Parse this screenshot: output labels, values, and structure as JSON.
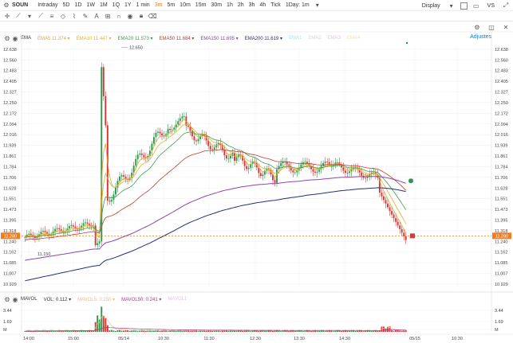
{
  "toolbar": {
    "symbol": "SOUN",
    "ranges": [
      "Intraday",
      "5D",
      "1D",
      "1W",
      "1M",
      "1Q",
      "1Y",
      "1 min"
    ],
    "intervals": [
      "3m",
      "5m",
      "10m",
      "15m",
      "30m",
      "1h",
      "2h",
      "3h",
      "4h",
      "Tick",
      "1Day: 1m"
    ],
    "active_interval": "3m",
    "display_label": "Display",
    "vs_label": "VS"
  },
  "drawing_tools": [
    "crosshair-icon",
    "line-tool-icon",
    "trend-icon",
    "fib-icon",
    "text-icon",
    "shape-icon",
    "measure-icon",
    "magnet-icon",
    "eye-icon",
    "lock-icon",
    "trash-icon"
  ],
  "indicator_legend": {
    "name": "EMA",
    "items": [
      {
        "label": "EMA5",
        "value": "11.374",
        "color": "#e8a33d"
      },
      {
        "label": "EMA10",
        "value": "11.447",
        "color": "#e0b730"
      },
      {
        "label": "EMA20",
        "value": "11.573",
        "color": "#3aa04d"
      },
      {
        "label": "EMA50",
        "value": "11.684",
        "color": "#c0392b"
      },
      {
        "label": "EMA150",
        "value": "11.695",
        "color": "#8e44ad"
      },
      {
        "label": "EMA200",
        "value": "11.619",
        "color": "#222f7a"
      },
      {
        "label": "EMA1",
        "value": "",
        "color": "#b5d9f0"
      },
      {
        "label": "EMA2",
        "value": "",
        "color": "#cfd6dc"
      },
      {
        "label": "EMA3",
        "value": "",
        "color": "#e2c6e0"
      },
      {
        "label": "EMA4",
        "value": "",
        "color": "#f2dfb0"
      }
    ],
    "adjust_label": "Adjustes"
  },
  "volume_legend": {
    "name": "MAVOL",
    "items": [
      {
        "label": "VOL:",
        "value": "0.112",
        "color": "#333"
      },
      {
        "label": "MAVOL5:",
        "value": "0.250",
        "color": "#f2b98e"
      },
      {
        "label": "MAVOL50:",
        "value": "0.241",
        "color": "#b23b7a"
      },
      {
        "label": "MAVOL1",
        "value": "",
        "color": "#e2c6e0"
      }
    ]
  },
  "price_axis": [
    "12.638",
    "12.560",
    "12.483",
    "12.405",
    "12.327",
    "12.250",
    "12.172",
    "12.094",
    "12.016",
    "11.939",
    "11.861",
    "11.784",
    "11.706",
    "11.628",
    "11.551",
    "11.473",
    "11.395",
    "11.318",
    "11.240",
    "11.162",
    "11.085",
    "11.007",
    "10.929"
  ],
  "volume_axis": [
    "3.44",
    "1.69",
    "M"
  ],
  "time_axis": [
    "14:00",
    "15:00",
    "05/14",
    "10:30",
    "11:30",
    "12:30",
    "13:30",
    "14:30",
    "05/15",
    "10:30"
  ],
  "current_price": "11.280",
  "annotations": {
    "high": "12.650",
    "low": "11.150"
  },
  "colors": {
    "up": "#2c9a4a",
    "down": "#d33a3a",
    "accent": "#f27c22",
    "link": "#1e7ac7"
  }
}
